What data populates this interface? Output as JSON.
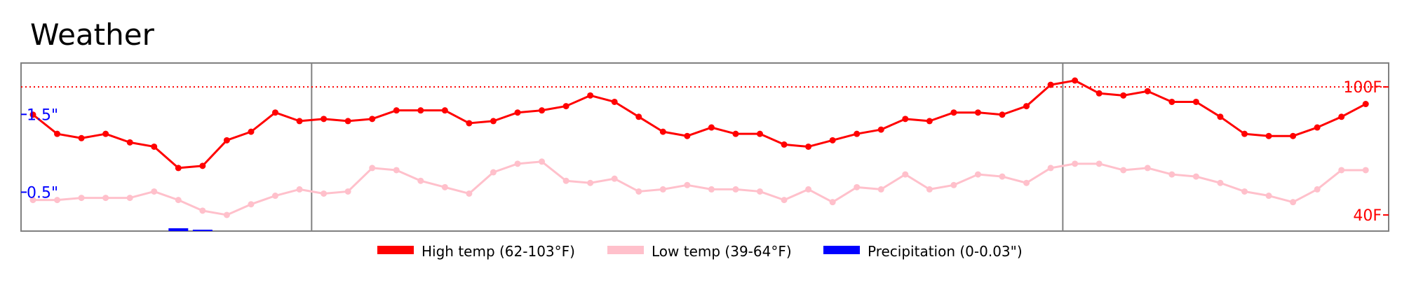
{
  "chart_data": {
    "type": "line",
    "title": "Weather",
    "ylim_temp_f": [
      39,
      103
    ],
    "ylim_precip_in": [
      0,
      1.8
    ],
    "grid": false,
    "legend_position": "bottom-center",
    "colors": {
      "high": "#ff0000",
      "low": "#ffc0cb",
      "precip": "#0000ff",
      "frame": "#808080"
    },
    "reference_lines": [
      {
        "label": "100F",
        "value": 100
      },
      {
        "label": "40F",
        "value": 40
      }
    ],
    "precip_ticks": [
      {
        "label": "1.5\"",
        "value": 1.5
      },
      {
        "label": "0.5\"",
        "value": 0.5
      }
    ],
    "separators": [
      11.5,
      42.5
    ],
    "series": [
      {
        "name": "High temp (62-103°F)",
        "key": "high",
        "values": [
          87,
          78,
          76,
          78,
          74,
          72,
          62,
          63,
          75,
          79,
          88,
          84,
          85,
          84,
          85,
          89,
          89,
          89,
          83,
          84,
          88,
          89,
          91,
          96,
          93,
          86,
          79,
          77,
          81,
          78,
          78,
          73,
          72,
          75,
          78,
          80,
          85,
          84,
          88,
          88,
          87,
          91,
          101,
          103,
          97,
          96,
          98,
          93,
          93,
          86,
          78,
          77,
          77,
          81,
          86,
          92
        ]
      },
      {
        "name": "Low temp (39-64°F)",
        "key": "low",
        "values": [
          47,
          47,
          48,
          48,
          48,
          51,
          47,
          42,
          40,
          45,
          49,
          52,
          50,
          51,
          62,
          61,
          56,
          53,
          50,
          60,
          64,
          65,
          56,
          55,
          57,
          51,
          52,
          54,
          52,
          52,
          51,
          47,
          52,
          46,
          53,
          52,
          59,
          52,
          54,
          59,
          58,
          55,
          62,
          64,
          64,
          61,
          62,
          59,
          58,
          55,
          51,
          49,
          46,
          52,
          61,
          61
        ]
      },
      {
        "name": "Precipitation (0-0.03\")",
        "key": "precip",
        "values": [
          0,
          0,
          0,
          0,
          0,
          0,
          0.03,
          0.02,
          0,
          0,
          0,
          0,
          0,
          0,
          0,
          0,
          0,
          0,
          0,
          0,
          0,
          0,
          0,
          0,
          0,
          0,
          0,
          0,
          0,
          0,
          0,
          0,
          0,
          0,
          0,
          0,
          0,
          0,
          0,
          0,
          0,
          0,
          0,
          0,
          0,
          0,
          0,
          0,
          0,
          0,
          0,
          0,
          0,
          0,
          0,
          0
        ]
      }
    ]
  }
}
